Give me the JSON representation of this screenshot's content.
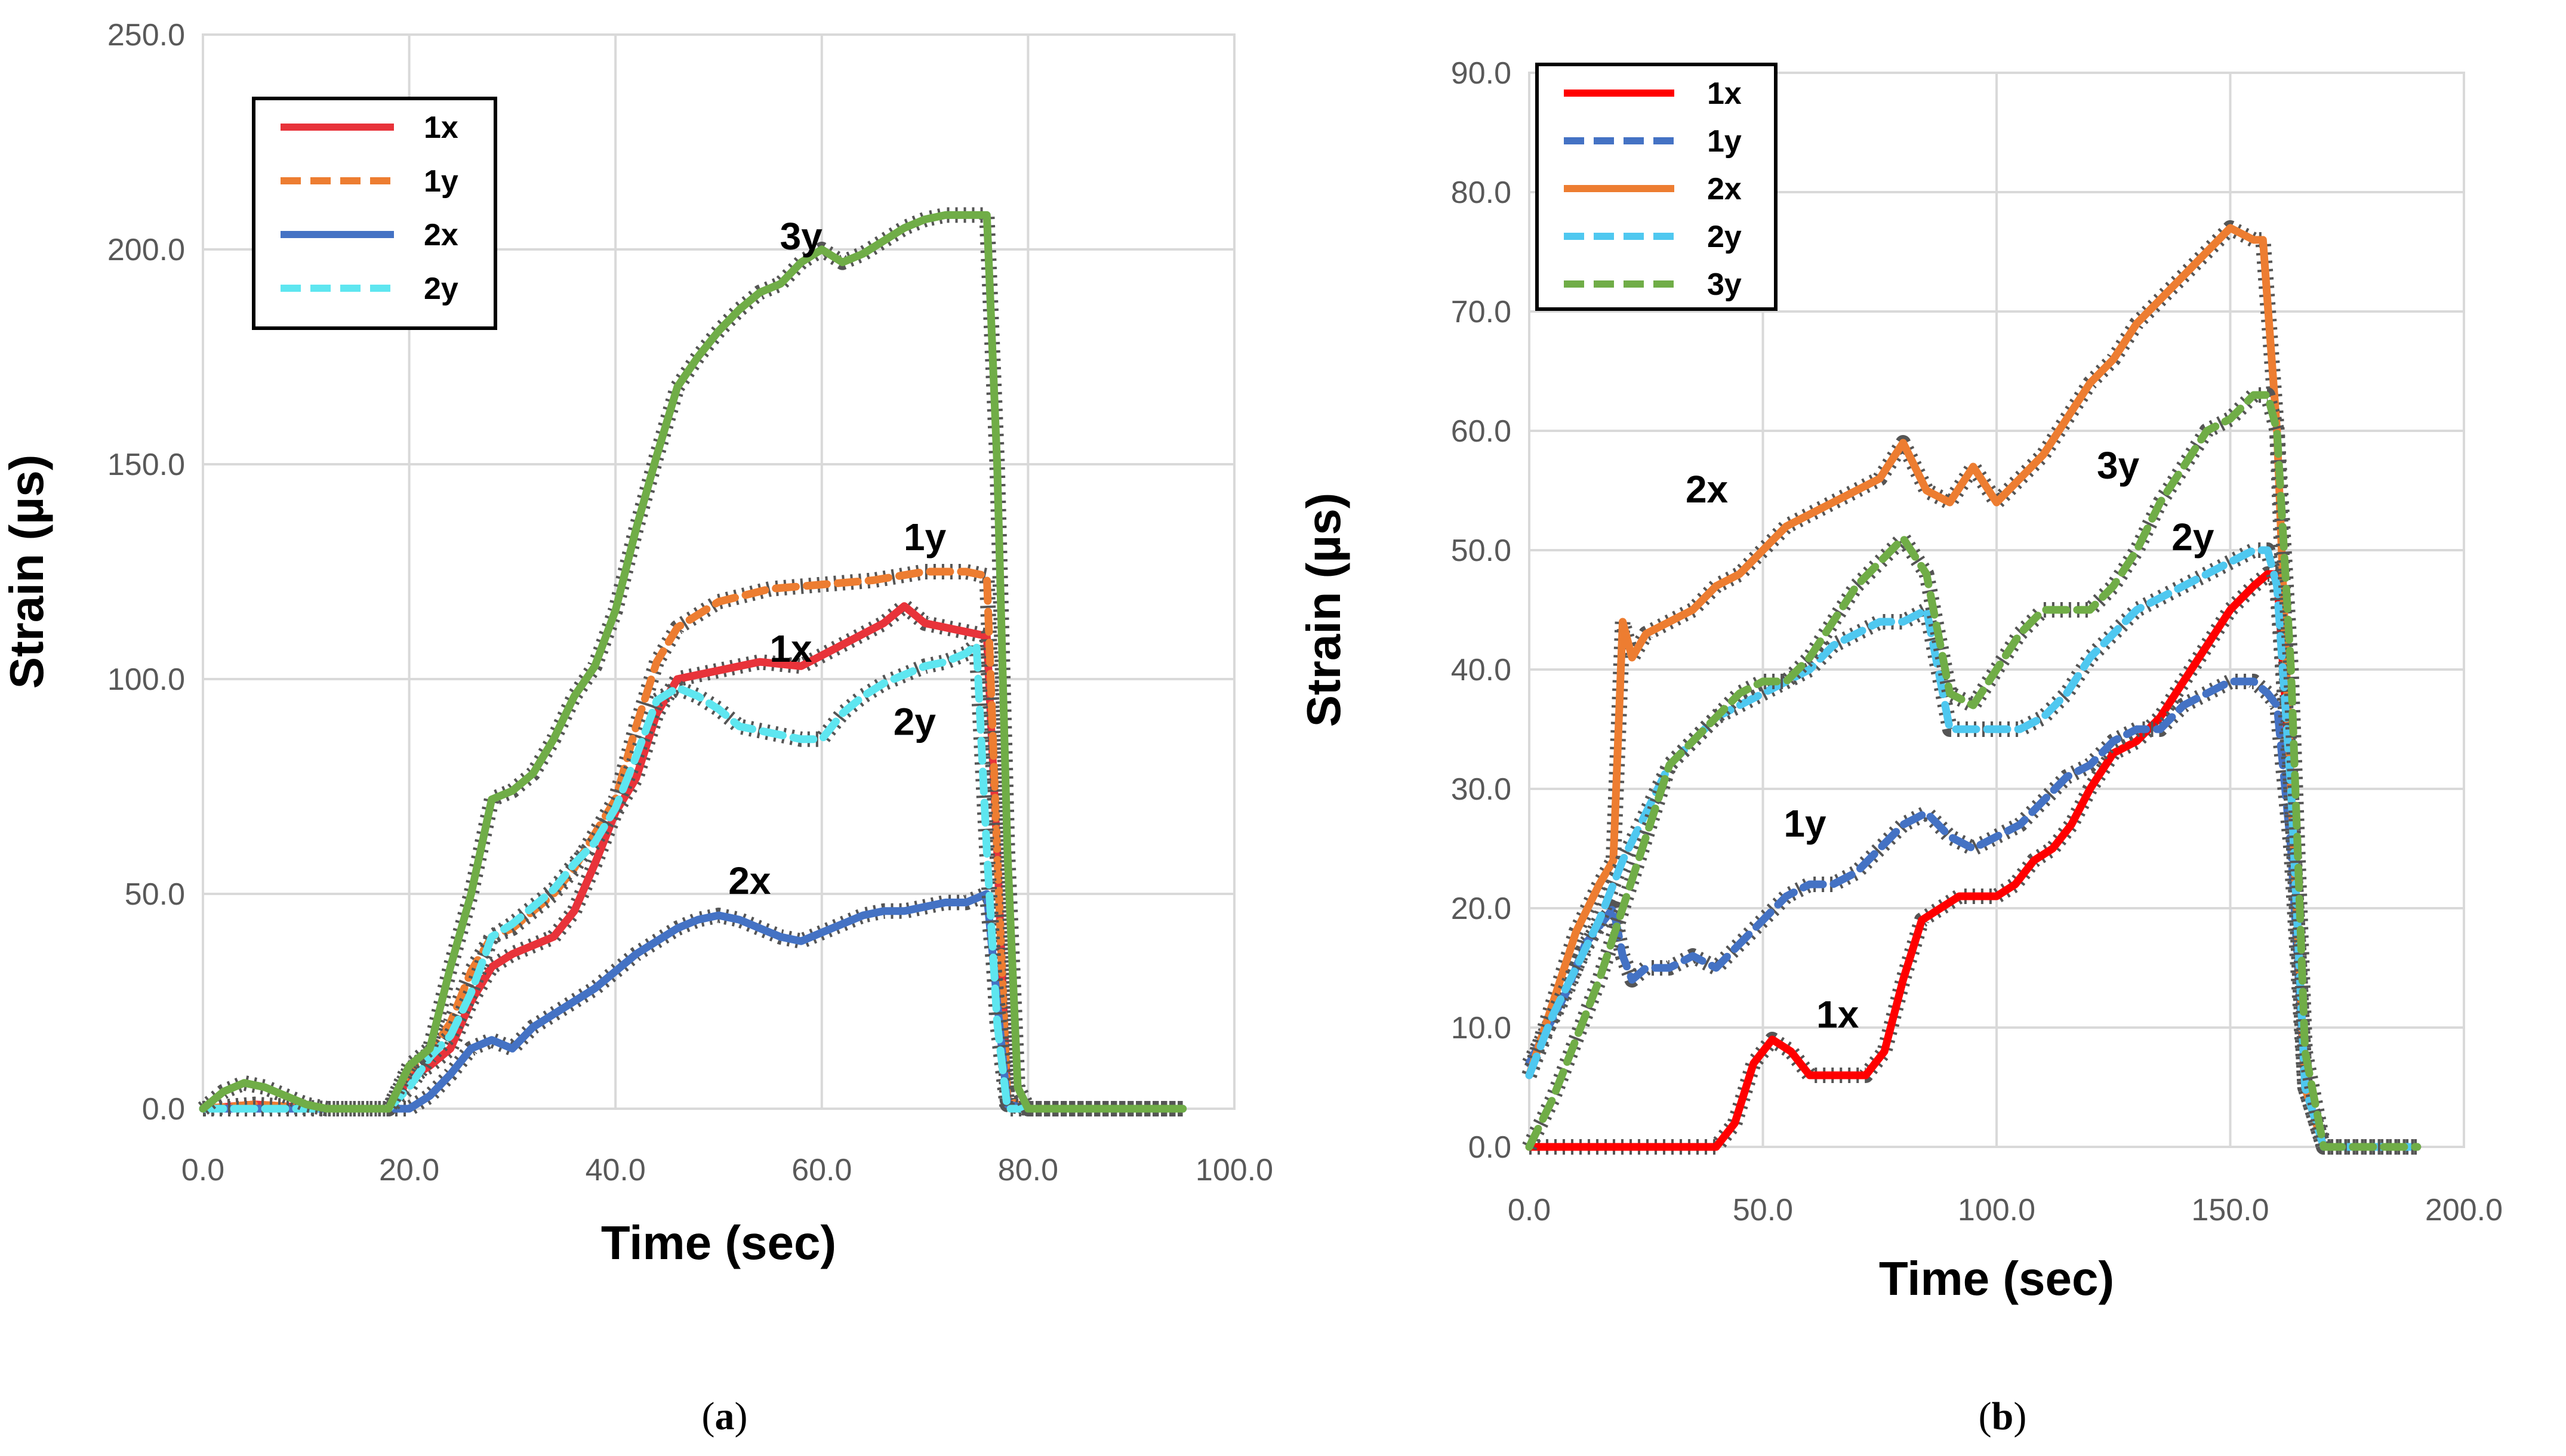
{
  "chart_data": [
    {
      "type": "line",
      "panel_label": "a",
      "xlabel": "Time (sec)",
      "ylabel": "Strain (µs)",
      "xlim": [
        0,
        100
      ],
      "ylim": [
        0,
        250
      ],
      "xticks": [
        0,
        20,
        40,
        60,
        80,
        100
      ],
      "yticks": [
        0,
        50,
        100,
        150,
        200,
        250
      ],
      "xtick_labels": [
        "0.0",
        "20.0",
        "40.0",
        "60.0",
        "80.0",
        "100.0"
      ],
      "ytick_labels": [
        "0.0",
        "50.0",
        "100.0",
        "150.0",
        "200.0",
        "250.0"
      ],
      "grid": true,
      "legend_position": "top-left",
      "series": [
        {
          "name": "1x",
          "color": "#e8333a",
          "dash": "solid",
          "in_legend": true,
          "x": [
            0,
            5,
            12,
            18,
            20,
            22,
            24,
            26,
            28,
            30,
            34,
            36,
            38,
            40,
            42,
            44,
            46,
            50,
            54,
            58,
            62,
            66,
            68,
            70,
            72,
            74,
            76,
            77,
            78,
            80,
            95
          ],
          "y": [
            0,
            1,
            0,
            0,
            7,
            10,
            14,
            25,
            33,
            36,
            40,
            46,
            57,
            69,
            77,
            92,
            100,
            102,
            104,
            103,
            108,
            113,
            117,
            113,
            112,
            111,
            110,
            60,
            2,
            0,
            0
          ]
        },
        {
          "name": "1y",
          "color": "#ed7d31",
          "dash": "dashed",
          "in_legend": true,
          "x": [
            0,
            5,
            12,
            18,
            20,
            22,
            24,
            26,
            28,
            30,
            34,
            36,
            38,
            40,
            42,
            44,
            46,
            50,
            55,
            60,
            65,
            70,
            74,
            76,
            77,
            78,
            80,
            95
          ],
          "y": [
            0,
            1,
            0,
            0,
            9,
            13,
            20,
            32,
            40,
            42,
            50,
            56,
            64,
            72,
            89,
            104,
            112,
            118,
            121,
            122,
            123,
            125,
            125,
            124,
            60,
            2,
            0,
            0
          ]
        },
        {
          "name": "2x",
          "color": "#4472c4",
          "dash": "solid",
          "in_legend": true,
          "x": [
            0,
            10,
            20,
            22,
            24,
            26,
            28,
            30,
            32,
            34,
            36,
            38,
            40,
            42,
            44,
            46,
            48,
            50,
            52,
            54,
            56,
            58,
            60,
            62,
            64,
            66,
            68,
            70,
            72,
            74,
            76,
            77,
            78,
            80,
            95
          ],
          "y": [
            0,
            0,
            0,
            3,
            8,
            14,
            16,
            14,
            19,
            22,
            25,
            28,
            32,
            36,
            39,
            42,
            44,
            45,
            44,
            42,
            40,
            39,
            41,
            43,
            45,
            46,
            46,
            47,
            48,
            48,
            50,
            25,
            1,
            0,
            0
          ]
        },
        {
          "name": "2y",
          "color": "#5ee6f0",
          "dash": "dashed",
          "in_legend": true,
          "x": [
            0,
            10,
            18,
            20,
            22,
            24,
            26,
            28,
            30,
            32,
            34,
            36,
            38,
            40,
            42,
            44,
            46,
            48,
            50,
            52,
            54,
            56,
            58,
            60,
            62,
            64,
            66,
            68,
            70,
            72,
            74,
            75,
            76,
            77,
            78,
            80,
            95
          ],
          "y": [
            0,
            0,
            0,
            5,
            12,
            17,
            27,
            40,
            43,
            47,
            51,
            57,
            62,
            70,
            82,
            95,
            98,
            96,
            93,
            89,
            88,
            87,
            86,
            86,
            92,
            96,
            99,
            101,
            103,
            104,
            106,
            108,
            60,
            20,
            0,
            0,
            0
          ]
        },
        {
          "name": "3y",
          "color": "#70ad47",
          "dash": "solid",
          "in_legend": false,
          "x": [
            0,
            2,
            4,
            6,
            8,
            10,
            12,
            18,
            20,
            22,
            24,
            26,
            28,
            30,
            32,
            34,
            36,
            38,
            40,
            42,
            44,
            46,
            48,
            50,
            52,
            54,
            56,
            58,
            60,
            62,
            64,
            66,
            68,
            70,
            72,
            74,
            76,
            77,
            78,
            79,
            80,
            95
          ],
          "y": [
            0,
            4,
            6,
            5,
            3,
            1,
            0,
            0,
            10,
            14,
            33,
            50,
            72,
            74,
            78,
            86,
            96,
            103,
            116,
            135,
            152,
            168,
            175,
            181,
            186,
            190,
            192,
            197,
            200,
            197,
            199,
            202,
            205,
            207,
            208,
            208,
            208,
            150,
            60,
            5,
            0,
            0
          ]
        }
      ],
      "legend": [
        "1x",
        "1y",
        "2x",
        "2y"
      ],
      "annotations": [
        {
          "text": "3y",
          "x": 58,
          "y": 200
        },
        {
          "text": "1y",
          "x": 70,
          "y": 130
        },
        {
          "text": "1x",
          "x": 57,
          "y": 104
        },
        {
          "text": "2y",
          "x": 69,
          "y": 87
        },
        {
          "text": "2x",
          "x": 53,
          "y": 50
        }
      ]
    },
    {
      "type": "line",
      "panel_label": "b",
      "xlabel": "Time (sec)",
      "ylabel": "Strain (µs)",
      "xlim": [
        0,
        200
      ],
      "ylim": [
        0,
        90
      ],
      "xticks": [
        0,
        50,
        100,
        150,
        200
      ],
      "yticks": [
        0,
        10,
        20,
        30,
        40,
        50,
        60,
        70,
        80,
        90
      ],
      "xtick_labels": [
        "0.0",
        "50.0",
        "100.0",
        "150.0",
        "200.0"
      ],
      "ytick_labels": [
        "0.0",
        "10.0",
        "20.0",
        "30.0",
        "40.0",
        "50.0",
        "60.0",
        "70.0",
        "80.0",
        "90.0"
      ],
      "grid": true,
      "legend_position": "top-left",
      "series": [
        {
          "name": "1x",
          "color": "#ff0000",
          "dash": "solid",
          "in_legend": true,
          "x": [
            0,
            40,
            44,
            48,
            52,
            56,
            60,
            64,
            68,
            72,
            76,
            80,
            84,
            88,
            92,
            96,
            100,
            104,
            108,
            112,
            116,
            120,
            125,
            130,
            135,
            140,
            145,
            150,
            155,
            158,
            160,
            163,
            166,
            170,
            190
          ],
          "y": [
            0,
            0,
            2,
            7,
            9,
            8,
            6,
            6,
            6,
            6,
            8,
            14,
            19,
            20,
            21,
            21,
            21,
            22,
            24,
            25,
            27,
            30,
            33,
            34,
            36,
            39,
            42,
            45,
            47,
            48,
            48,
            30,
            5,
            0,
            0
          ]
        },
        {
          "name": "1y",
          "color": "#4472c4",
          "dash": "dashed",
          "in_legend": true,
          "x": [
            0,
            4,
            8,
            12,
            16,
            18,
            20,
            22,
            25,
            30,
            35,
            40,
            45,
            50,
            55,
            60,
            65,
            70,
            75,
            80,
            85,
            90,
            95,
            100,
            105,
            110,
            115,
            120,
            125,
            130,
            135,
            140,
            145,
            150,
            155,
            158,
            160,
            163,
            166,
            170,
            190
          ],
          "y": [
            7,
            10,
            13,
            17,
            19,
            20,
            16,
            14,
            15,
            15,
            16,
            15,
            17,
            19,
            21,
            22,
            22,
            23,
            25,
            27,
            28,
            26,
            25,
            26,
            27,
            29,
            31,
            32,
            34,
            35,
            35,
            37,
            38,
            39,
            39,
            38,
            37,
            25,
            5,
            0,
            0
          ]
        },
        {
          "name": "2x",
          "color": "#ed7d31",
          "dash": "solid",
          "in_legend": true,
          "x": [
            0,
            5,
            10,
            15,
            18,
            20,
            22,
            25,
            30,
            35,
            40,
            45,
            50,
            55,
            60,
            65,
            70,
            75,
            80,
            85,
            90,
            95,
            100,
            105,
            110,
            115,
            120,
            125,
            130,
            135,
            140,
            145,
            150,
            155,
            157,
            160,
            163,
            166,
            170,
            190
          ],
          "y": [
            6,
            12,
            18,
            22,
            24,
            44,
            41,
            43,
            44,
            45,
            47,
            48,
            50,
            52,
            53,
            54,
            55,
            56,
            59,
            55,
            54,
            57,
            54,
            56,
            58,
            61,
            64,
            66,
            69,
            71,
            73,
            75,
            77,
            76,
            76,
            60,
            30,
            5,
            0,
            0
          ]
        },
        {
          "name": "2y",
          "color": "#4fc8f0",
          "dash": "dashed",
          "in_legend": true,
          "x": [
            0,
            5,
            10,
            15,
            20,
            25,
            30,
            35,
            40,
            45,
            50,
            55,
            60,
            65,
            70,
            75,
            80,
            85,
            90,
            95,
            100,
            105,
            110,
            115,
            120,
            125,
            130,
            135,
            140,
            145,
            150,
            155,
            158,
            160,
            163,
            166,
            170,
            190
          ],
          "y": [
            6,
            11,
            15,
            19,
            24,
            28,
            32,
            34,
            36,
            37,
            38,
            39,
            40,
            42,
            43,
            44,
            44,
            45,
            35,
            35,
            35,
            35,
            36,
            38,
            41,
            43,
            45,
            46,
            47,
            48,
            49,
            50,
            50,
            47,
            30,
            5,
            0,
            0
          ]
        },
        {
          "name": "3y",
          "color": "#70ad47",
          "dash": "dashed",
          "in_legend": true,
          "x": [
            0,
            5,
            10,
            15,
            20,
            25,
            30,
            35,
            40,
            45,
            50,
            55,
            60,
            65,
            70,
            75,
            80,
            85,
            90,
            95,
            100,
            105,
            110,
            115,
            120,
            125,
            130,
            135,
            140,
            145,
            150,
            155,
            158,
            160,
            163,
            166,
            170,
            190
          ],
          "y": [
            0,
            4,
            9,
            14,
            20,
            26,
            32,
            34,
            36,
            38,
            39,
            39,
            41,
            44,
            47,
            49,
            51,
            48,
            38,
            37,
            40,
            43,
            45,
            45,
            45,
            47,
            50,
            54,
            57,
            60,
            61,
            63,
            63,
            60,
            40,
            8,
            0,
            0
          ]
        }
      ],
      "legend": [
        "1x",
        "1y",
        "2x",
        "2y",
        "3y"
      ],
      "annotations": [
        {
          "text": "2x",
          "x": 38,
          "y": 54
        },
        {
          "text": "3y",
          "x": 126,
          "y": 56
        },
        {
          "text": "2y",
          "x": 142,
          "y": 50
        },
        {
          "text": "1y",
          "x": 59,
          "y": 26
        },
        {
          "text": "1x",
          "x": 66,
          "y": 10
        }
      ]
    }
  ]
}
